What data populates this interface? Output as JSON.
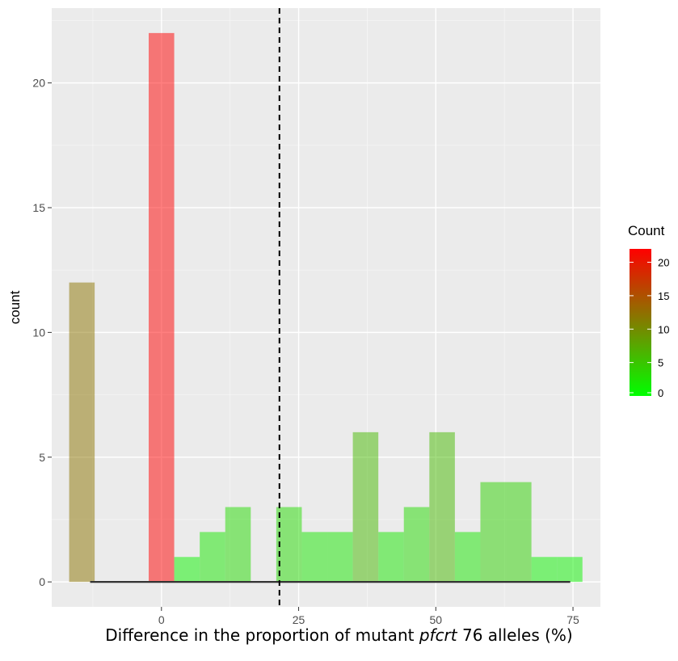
{
  "chart_data": {
    "type": "bar",
    "title": "",
    "xlabel": {
      "before": "Difference in the proportion of mutant ",
      "italic": "pfcrt",
      "after": " 76 alleles (%)"
    },
    "ylabel": "count",
    "xlim": [
      -20,
      80
    ],
    "ylim": [
      -1,
      23
    ],
    "x_ticks": [
      0,
      25,
      50,
      75
    ],
    "y_ticks": [
      0,
      5,
      10,
      15,
      20
    ],
    "vline": 21.5,
    "bin_width": 4.65,
    "bins": [
      {
        "x": -14.5,
        "count": 12
      },
      {
        "x": 0,
        "count": 22
      },
      {
        "x": 4.65,
        "count": 1
      },
      {
        "x": 9.3,
        "count": 2
      },
      {
        "x": 13.95,
        "count": 3
      },
      {
        "x": 23.25,
        "count": 3
      },
      {
        "x": 27.9,
        "count": 2
      },
      {
        "x": 32.55,
        "count": 2
      },
      {
        "x": 37.2,
        "count": 6
      },
      {
        "x": 41.85,
        "count": 2
      },
      {
        "x": 46.5,
        "count": 3
      },
      {
        "x": 51.15,
        "count": 6
      },
      {
        "x": 55.8,
        "count": 2
      },
      {
        "x": 60.45,
        "count": 4
      },
      {
        "x": 65.1,
        "count": 4
      },
      {
        "x": 69.75,
        "count": 1
      },
      {
        "x": 74.4,
        "count": 1
      }
    ],
    "baseline": [
      -13,
      74.5
    ],
    "legend": {
      "title": "Count",
      "labels": [
        "20",
        "15",
        "10",
        "5",
        "0"
      ],
      "position": "right",
      "low_color": "#00ff00",
      "high_color": "#ff0000"
    },
    "panel_color": "#ebebeb",
    "grid": true
  }
}
